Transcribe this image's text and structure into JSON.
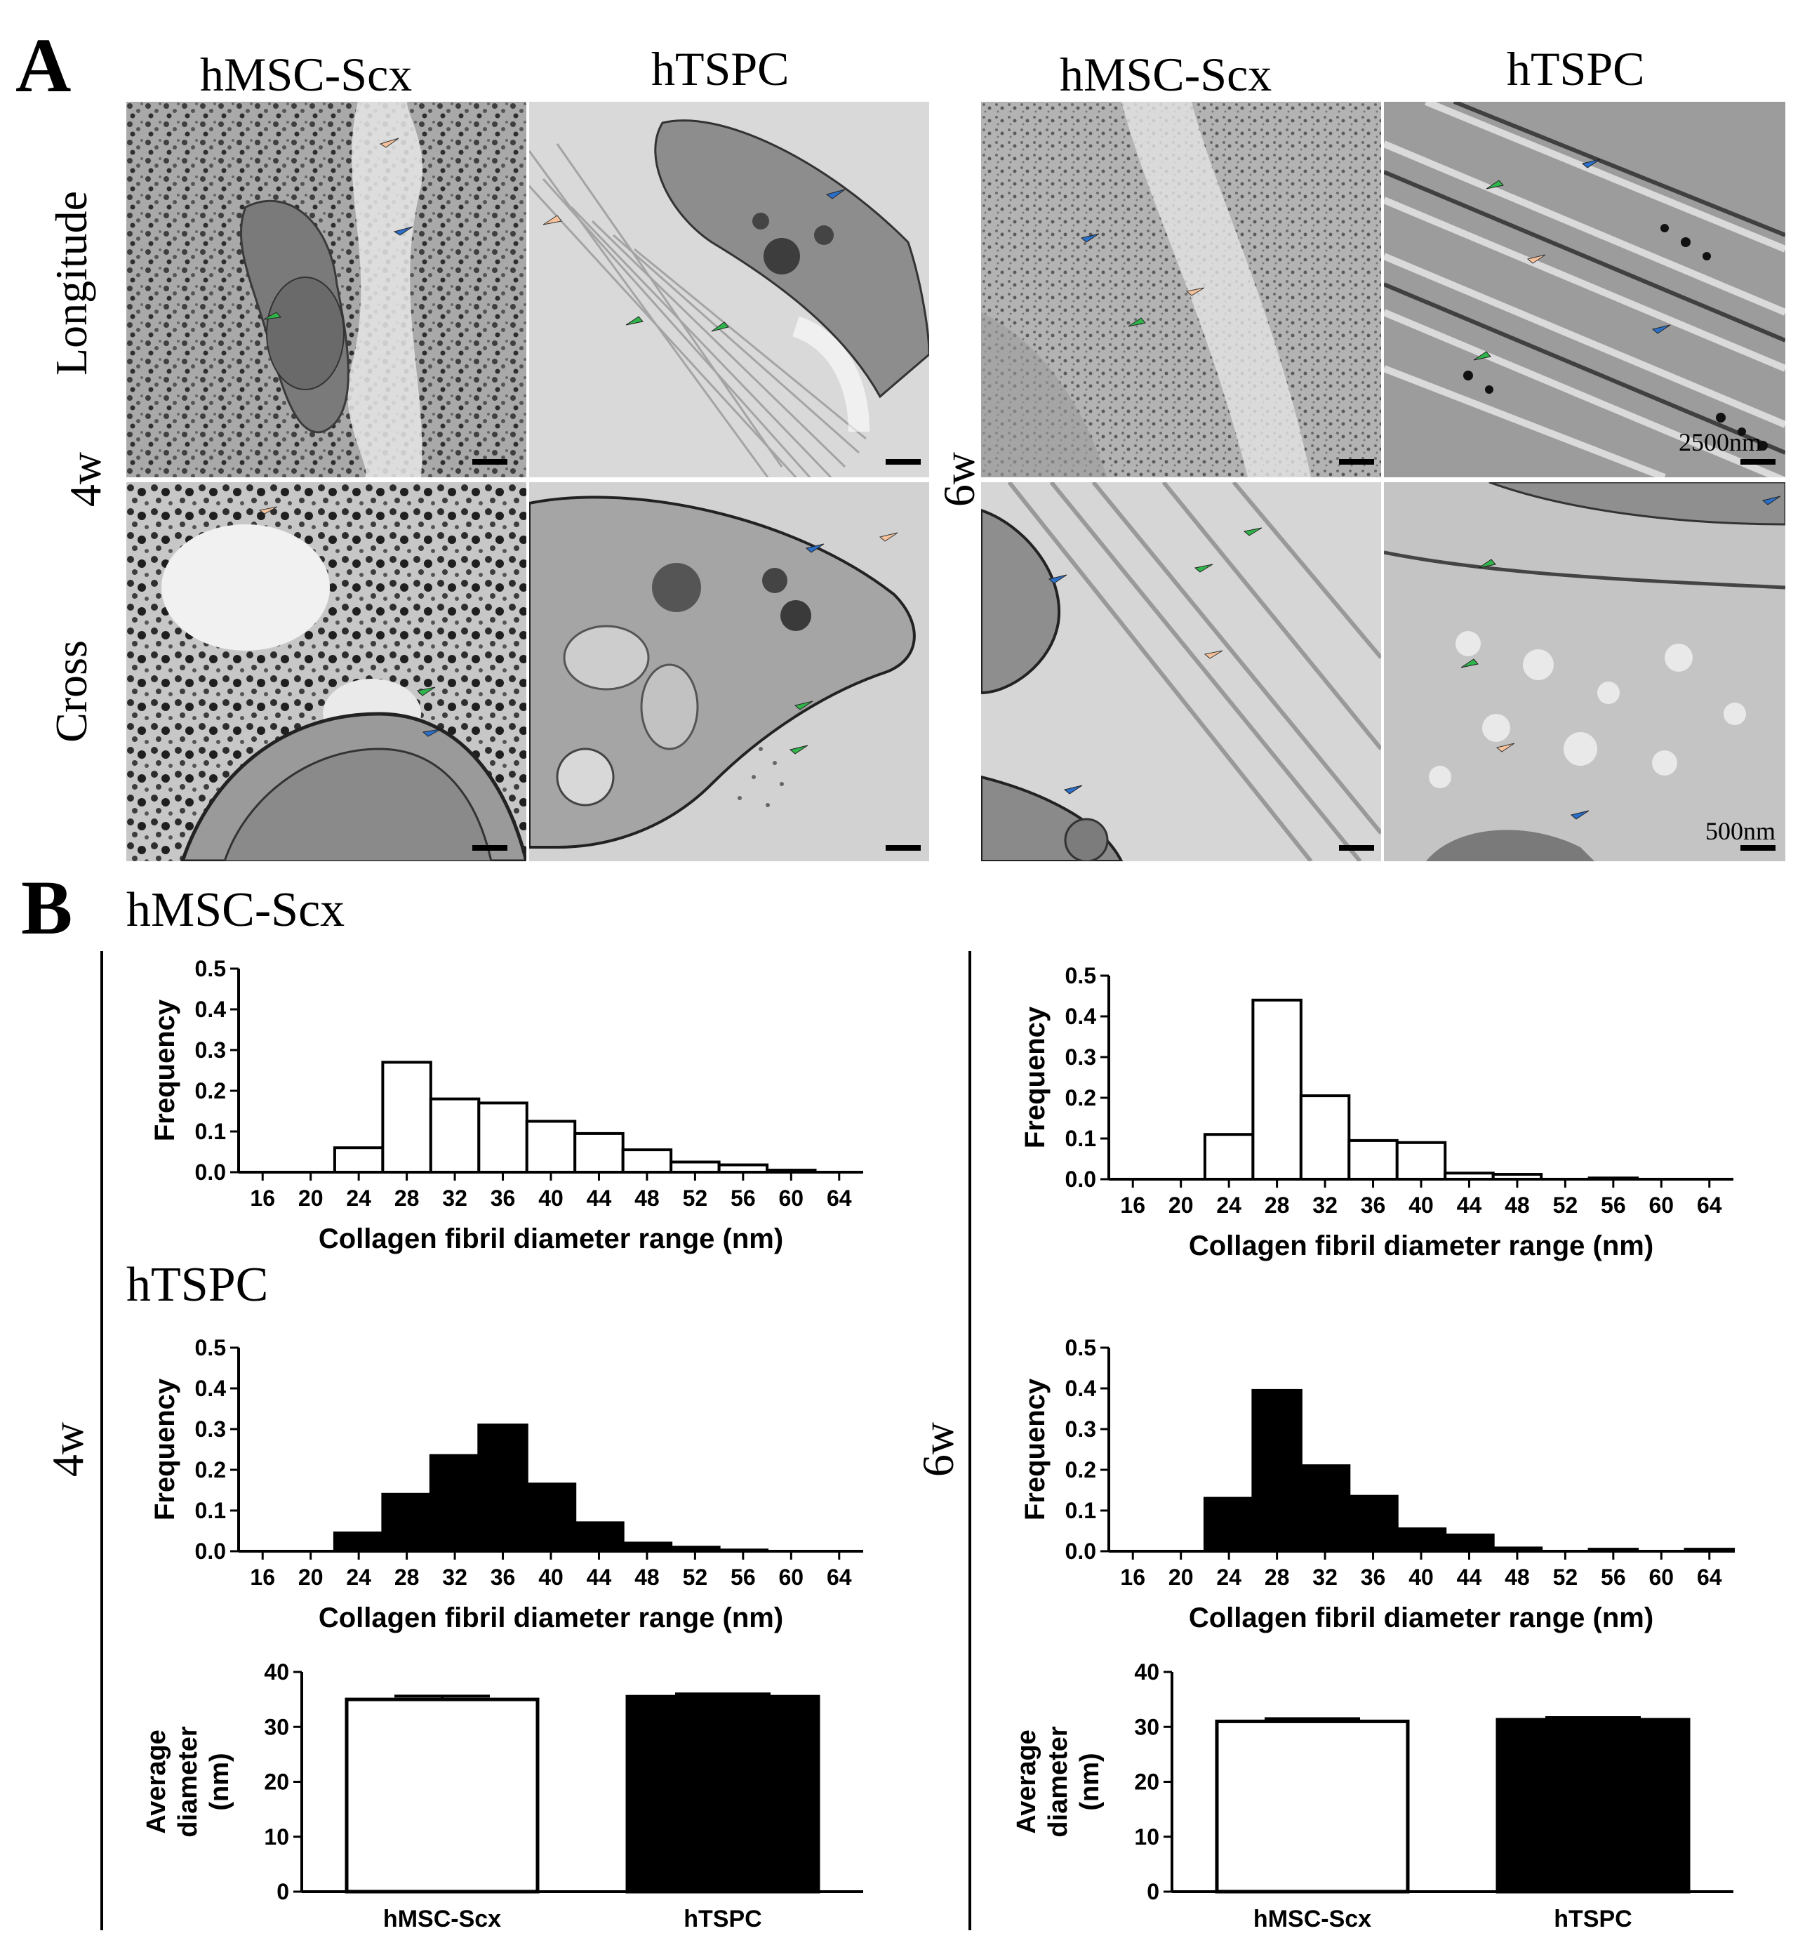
{
  "panel_a": {
    "letter": "A",
    "col_headers": [
      "hMSC-Scx",
      "hTSPC",
      "hMSC-Scx",
      "hTSPC"
    ],
    "row_labels": [
      "Longitude",
      "Cross"
    ],
    "time_labels": [
      "4w",
      "6w"
    ],
    "scale_labels": [
      "2500nm",
      "500nm"
    ],
    "arrow_colors": {
      "cell": "#2a6fc9",
      "fibril": "#2fb54a",
      "space": "#f7c29a"
    }
  },
  "panel_b": {
    "letter": "B",
    "group_titles": [
      "hMSC-Scx",
      "hTSPC"
    ],
    "time_labels": [
      "4w",
      "6w"
    ],
    "hist_xlabel": "Collagen fibril diameter range (nm)",
    "hist_ylabel": "Frequency",
    "bar_ylabel_line1": "Average",
    "bar_ylabel_line2": "diameter",
    "bar_ylabel_line3": "(nm)",
    "bar_categories": [
      "hMSC-Scx",
      "hTSPC"
    ]
  },
  "chart_data": [
    {
      "type": "bar",
      "group": "hMSC-Scx 4w",
      "xlabel": "Collagen fibril diameter range (nm)",
      "ylabel": "Frequency",
      "ylim": [
        0,
        0.5
      ],
      "yticks": [
        "0.0",
        "0.1",
        "0.2",
        "0.3",
        "0.4",
        "0.5"
      ],
      "xticks": [
        "16",
        "20",
        "24",
        "28",
        "32",
        "36",
        "40",
        "44",
        "48",
        "52",
        "56",
        "60",
        "64"
      ],
      "bin_starts": [
        16,
        18,
        20,
        22,
        24,
        26,
        28,
        30,
        32,
        34,
        36,
        38,
        40,
        42,
        44,
        46,
        48,
        50,
        52,
        54,
        56,
        58,
        60,
        62,
        64
      ],
      "values": [
        0,
        0,
        0,
        0,
        0,
        0,
        0.06,
        0.27,
        0.18,
        0.17,
        0.125,
        0.095,
        0.055,
        0.025,
        0.018,
        0.005,
        0,
        0,
        0,
        0,
        0,
        0,
        0,
        0,
        0
      ],
      "fill": "#ffffff"
    },
    {
      "type": "bar",
      "group": "hMSC-Scx 6w",
      "xlabel": "Collagen fibril diameter range (nm)",
      "ylabel": "Frequency",
      "ylim": [
        0,
        0.5
      ],
      "yticks": [
        "0.0",
        "0.1",
        "0.2",
        "0.3",
        "0.4",
        "0.5"
      ],
      "xticks": [
        "16",
        "20",
        "24",
        "28",
        "32",
        "36",
        "40",
        "44",
        "48",
        "52",
        "56",
        "60",
        "64"
      ],
      "values": [
        0,
        0,
        0,
        0,
        0,
        0,
        0.11,
        0.44,
        0.205,
        0.095,
        0.09,
        0.015,
        0.012,
        0,
        0.003,
        0,
        0,
        0,
        0,
        0,
        0,
        0,
        0,
        0,
        0
      ],
      "fill": "#ffffff"
    },
    {
      "type": "bar",
      "group": "hTSPC 4w",
      "xlabel": "Collagen fibril diameter range (nm)",
      "ylabel": "Frequency",
      "ylim": [
        0,
        0.5
      ],
      "yticks": [
        "0.0",
        "0.1",
        "0.2",
        "0.3",
        "0.4",
        "0.5"
      ],
      "xticks": [
        "16",
        "20",
        "24",
        "28",
        "32",
        "36",
        "40",
        "44",
        "48",
        "52",
        "56",
        "60",
        "64"
      ],
      "values": [
        0,
        0,
        0,
        0,
        0,
        0,
        0.045,
        0.14,
        0.235,
        0.31,
        0.165,
        0.07,
        0.02,
        0.01,
        0.003,
        0,
        0,
        0,
        0,
        0,
        0,
        0,
        0,
        0,
        0
      ],
      "fill": "#000000"
    },
    {
      "type": "bar",
      "group": "hTSPC 6w",
      "xlabel": "Collagen fibril diameter range (nm)",
      "ylabel": "Frequency",
      "ylim": [
        0,
        0.5
      ],
      "yticks": [
        "0.0",
        "0.1",
        "0.2",
        "0.3",
        "0.4",
        "0.5"
      ],
      "xticks": [
        "16",
        "20",
        "24",
        "28",
        "32",
        "36",
        "40",
        "44",
        "48",
        "52",
        "56",
        "60",
        "64"
      ],
      "values": [
        0,
        0,
        0,
        0,
        0,
        0,
        0.13,
        0.395,
        0.21,
        0.135,
        0.055,
        0.04,
        0.008,
        0,
        0.005,
        0,
        0.005,
        0,
        0,
        0,
        0,
        0,
        0,
        0,
        0
      ],
      "fill": "#000000"
    },
    {
      "type": "bar",
      "group": "Average 4w",
      "ylabel": "Average diameter (nm)",
      "ylim": [
        0,
        40
      ],
      "yticks": [
        "0",
        "10",
        "20",
        "30",
        "40"
      ],
      "categories": [
        "hMSC-Scx",
        "hTSPC"
      ],
      "values": [
        35.0,
        35.5
      ],
      "errors": [
        0.6,
        0.5
      ],
      "fills": [
        "#ffffff",
        "#000000"
      ]
    },
    {
      "type": "bar",
      "group": "Average 6w",
      "ylabel": "Average diameter (nm)",
      "ylim": [
        0,
        40
      ],
      "yticks": [
        "0",
        "10",
        "20",
        "30",
        "40"
      ],
      "categories": [
        "hMSC-Scx",
        "hTSPC"
      ],
      "values": [
        31.0,
        31.3
      ],
      "errors": [
        0.5,
        0.4
      ],
      "fills": [
        "#ffffff",
        "#000000"
      ]
    }
  ]
}
